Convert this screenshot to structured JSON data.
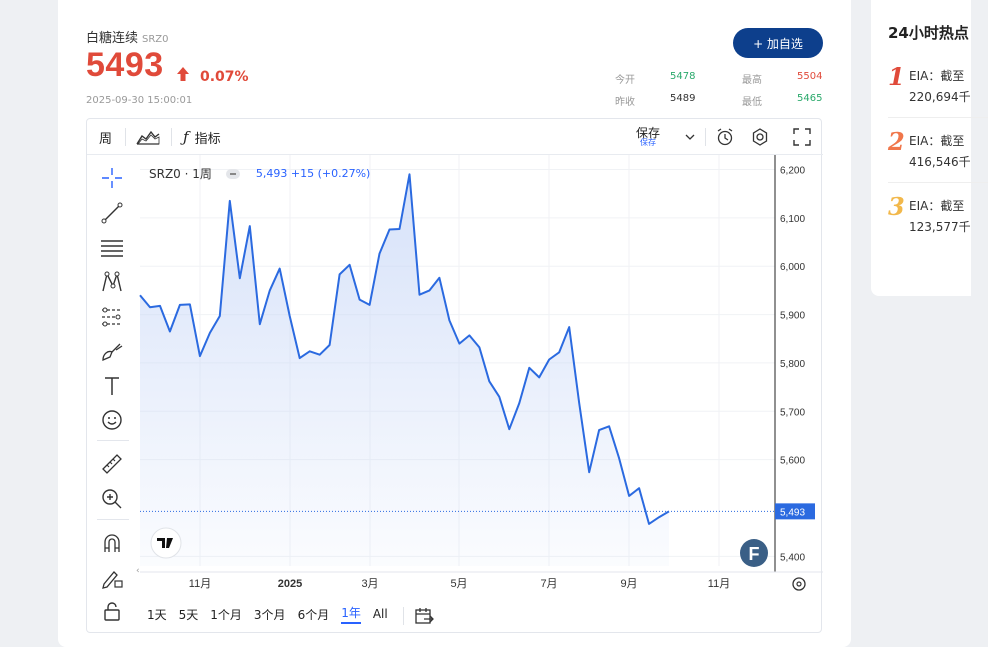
{
  "header": {
    "name": "白糖连续",
    "code": "SRZ0",
    "price": "5493",
    "change_pct": "0.07%",
    "timestamp": "2025-09-30 15:00:01",
    "add_button": "+ 加自选",
    "stats": {
      "open_label": "今开",
      "open_value": "5478",
      "high_label": "最高",
      "high_value": "5504",
      "prev_label": "昨收",
      "prev_value": "5489",
      "low_label": "最低",
      "low_value": "5465"
    },
    "colors": {
      "up": "#e04a3a",
      "down": "#2aa96b",
      "brand": "#0d3f8c"
    }
  },
  "toolbar": {
    "interval": "周",
    "indicators": "指标",
    "save": "保存",
    "save_sub": "保存"
  },
  "legend": {
    "symbol": "SRZ0 · 1周",
    "quote": "5,493 +15 (+0.27%)"
  },
  "ranges": [
    "1天",
    "5天",
    "1个月",
    "3个月",
    "6个月",
    "1年",
    "All"
  ],
  "active_range": "1年",
  "logo_text": "F",
  "chart_data": {
    "type": "area",
    "title": "SRZ0 · 1周",
    "x_ticks": [
      "11月",
      "2025",
      "3月",
      "5月",
      "7月",
      "9月",
      "11月"
    ],
    "y_ticks": [
      "6,200",
      "6,100",
      "6,000",
      "5,900",
      "5,800",
      "5,700",
      "5,600",
      "5,400"
    ],
    "ylim": [
      5380,
      6230
    ],
    "last_price": 5493,
    "last_price_label": "5,493",
    "series": [
      {
        "values": [
          5940,
          5915,
          5918,
          5865,
          5920,
          5921,
          5814,
          5862,
          5897,
          6135,
          5975,
          6083,
          5880,
          5950,
          5995,
          5897,
          5810,
          5824,
          5817,
          5837,
          5983,
          6003,
          5931,
          5920,
          6026,
          6076,
          6077,
          6190,
          5941,
          5950,
          5976,
          5888,
          5840,
          5857,
          5832,
          5762,
          5730,
          5663,
          5717,
          5790,
          5770,
          5807,
          5822,
          5874,
          5717,
          5574,
          5661,
          5669,
          5603,
          5525,
          5541,
          5467,
          5481,
          5493
        ]
      }
    ],
    "grid": true,
    "line_color": "#2b6ae0",
    "fill_color": "#c9d8f7"
  },
  "hot": {
    "title": "24小时热点",
    "items": [
      {
        "rank": "1",
        "line1": "EIA：截至",
        "line2": "220,694千",
        "color": "#e04a3a"
      },
      {
        "rank": "2",
        "line1": "EIA：截至",
        "line2": "416,546千",
        "color": "#f0764a"
      },
      {
        "rank": "3",
        "line1": "EIA：截至",
        "line2": "123,577千",
        "color": "#f2b84b"
      }
    ]
  }
}
